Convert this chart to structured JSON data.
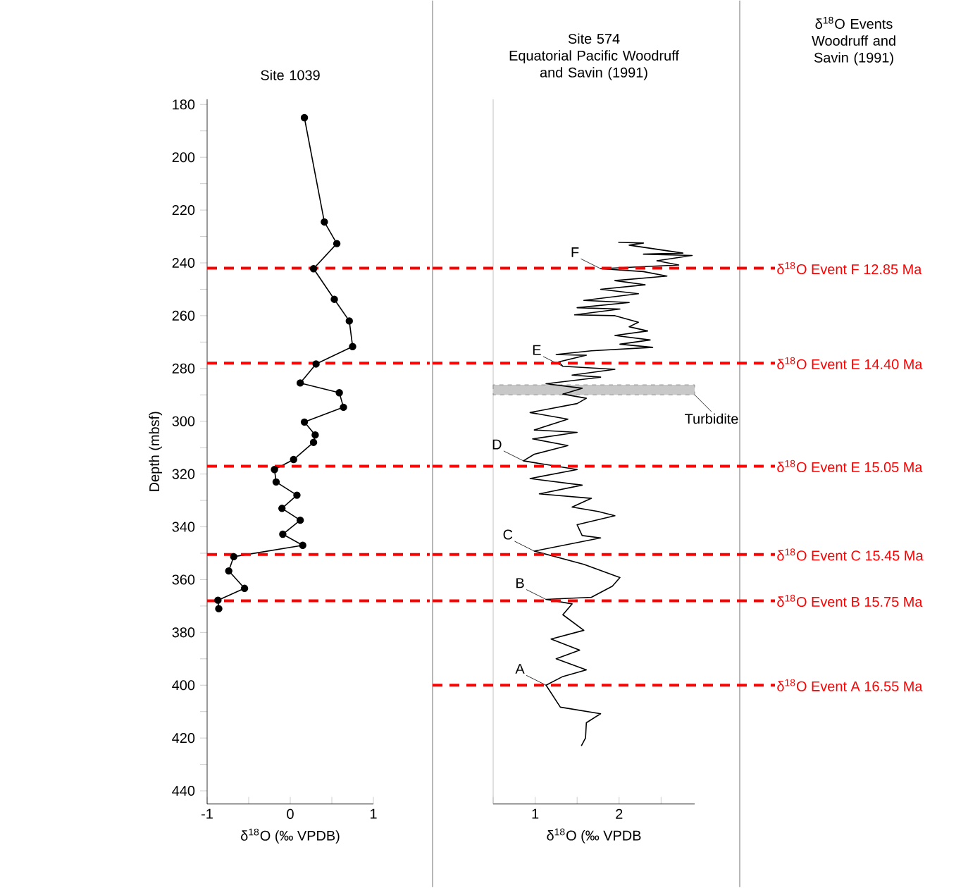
{
  "chart_data": [
    {
      "type": "line",
      "title": "Site 1039",
      "xlabel": "δ$^{18}$O (‰ VPDB)",
      "ylabel": "Depth (mbsf)",
      "marker": "circle",
      "line_style": "solid",
      "xlim": [
        -1,
        1
      ],
      "xticks": [
        -1,
        {
          "value": -0.5,
          "label": null
        },
        0,
        {
          "value": 0.5,
          "label": null
        },
        1
      ],
      "ylim": [
        445,
        178
      ],
      "yticks": [
        180,
        {
          "value": 190,
          "label": null
        },
        200,
        {
          "value": 210,
          "label": null
        },
        220,
        {
          "value": 230,
          "label": null
        },
        240,
        {
          "value": 250,
          "label": null
        },
        260,
        {
          "value": 270,
          "label": null
        },
        280,
        {
          "value": 290,
          "label": null
        },
        300,
        {
          "value": 310,
          "label": null
        },
        320,
        {
          "value": 330,
          "label": null
        },
        340,
        {
          "value": 350,
          "label": null
        },
        360,
        {
          "value": 370,
          "label": null
        },
        380,
        {
          "value": 390,
          "label": null
        },
        400,
        {
          "value": 410,
          "label": null
        },
        420,
        {
          "value": 430,
          "label": null
        },
        440
      ],
      "series": [
        {
          "color": "#000000",
          "x": [
            0.17,
            0.41,
            0.56,
            0.28,
            0.53,
            0.71,
            0.75,
            0.31,
            0.12,
            0.59,
            0.64,
            0.17,
            0.3,
            0.28,
            0.04,
            -0.19,
            -0.17,
            0.08,
            -0.1,
            0.12,
            -0.09,
            0.15,
            -0.68,
            -0.74,
            -0.55,
            -0.87,
            -0.86
          ],
          "values": [
            185,
            224.5,
            232.7,
            242.2,
            253.8,
            262,
            271.7,
            278.3,
            285.5,
            289.2,
            294.7,
            300.3,
            305.2,
            308,
            314.5,
            318.3,
            323,
            328,
            333,
            337.5,
            342.8,
            347,
            351.3,
            356.7,
            363.3,
            367.8,
            371
          ]
        }
      ],
      "ref_lines": [
        {
          "axis": "y",
          "value": 242,
          "color": "#ff0000",
          "line_style": "dashed"
        },
        {
          "axis": "y",
          "value": 278,
          "color": "#ff0000",
          "line_style": "dashed"
        },
        {
          "axis": "y",
          "value": 317,
          "color": "#ff0000",
          "line_style": "dashed"
        },
        {
          "axis": "y",
          "value": 350.5,
          "color": "#ff0000",
          "line_style": "dashed"
        },
        {
          "axis": "y",
          "value": 368,
          "color": "#ff0000",
          "line_style": "dashed"
        }
      ]
    },
    {
      "type": "line",
      "title": "Site 574",
      "subtitle": "Equatorial Pacific Woodruff and Savin (1991)",
      "xlabel": "δ$^{18}$O (‰ VPDB",
      "marker": "none",
      "line_style": "solid",
      "tick_labels": "x",
      "xlim": [
        0.5,
        2.9
      ],
      "xticks": [
        {
          "value": 0.5,
          "label": null
        },
        1,
        {
          "value": 1.5,
          "label": null
        },
        2,
        {
          "value": 2.5,
          "label": null
        }
      ],
      "ylim": [
        445,
        178
      ],
      "series": [
        {
          "color": "#000000",
          "x": [
            1.99,
            2.29,
            2.12,
            2.76,
            2.29,
            2.87,
            2.45,
            2.71,
            1.78,
            2.29,
            2.57,
            1.95,
            2.31,
            1.78,
            2.23,
            1.58,
            2.12,
            1.5,
            2.01,
            1.47,
            1.95,
            2.23,
            2.12,
            2.34,
            1.95,
            2.37,
            2.01,
            2.4,
            1.67,
            1.25,
            1.61,
            1.28,
            1.33,
            1.95,
            1.44,
            1.78,
            1.13,
            1.56,
            1.33,
            1.61,
            1.5,
            0.94,
            1.39,
            0.99,
            1.5,
            0.97,
            1.39,
            0.99,
            0.86,
            1.5,
            0.94,
            1.56,
            1.05,
            1.67,
            1.44,
            1.75,
            1.95,
            1.5,
            1.56,
            1.78,
            0.99,
            1.58,
            2.01,
            1.92,
            1.67,
            1.13,
            1.44,
            1.33,
            1.58,
            1.19,
            1.53,
            1.25,
            1.61,
            1.33,
            1.13,
            1.3,
            1.78,
            1.61,
            1.6,
            1.55
          ],
          "values": [
            232.2,
            232.5,
            233.3,
            236.3,
            236.7,
            237.2,
            239.2,
            240.8,
            242.2,
            243.3,
            245,
            246.7,
            248.3,
            250,
            251.7,
            254.2,
            255,
            257,
            257.5,
            259.7,
            260,
            262.5,
            264.2,
            265.8,
            267.5,
            269.2,
            270.8,
            272,
            273.3,
            274.7,
            275,
            277.5,
            279.2,
            280.3,
            282.5,
            283.3,
            285.8,
            287.5,
            289.7,
            291.3,
            293.3,
            296.7,
            299.2,
            303.3,
            304.2,
            306.7,
            309.2,
            312.5,
            315,
            318.3,
            321.7,
            324.2,
            327.5,
            329.2,
            332.5,
            334.2,
            335.8,
            339.2,
            343.3,
            344.2,
            349.2,
            354.2,
            359.2,
            362.5,
            366.7,
            367.5,
            369.2,
            373.3,
            379.2,
            382.5,
            386.7,
            390,
            394.2,
            396.7,
            400,
            408.3,
            410.8,
            414.2,
            420,
            423
          ]
        }
      ],
      "bands": [
        {
          "axis": "y",
          "from": 286.2,
          "to": 290,
          "label": "Turbidite",
          "color": "#c8c8c8"
        }
      ],
      "annotations": [
        {
          "text": "F",
          "x": 1.78,
          "y": 242.2
        },
        {
          "text": "E",
          "x": 1.33,
          "y": 279.2
        },
        {
          "text": "D",
          "x": 0.86,
          "y": 315
        },
        {
          "text": "C",
          "x": 0.99,
          "y": 349.2
        },
        {
          "text": "B",
          "x": 1.13,
          "y": 367.5
        },
        {
          "text": "A",
          "x": 1.13,
          "y": 400
        }
      ],
      "ref_lines": [
        {
          "axis": "y",
          "value": 242,
          "label": "δ$^{18}$O Event F 12.85 Ma",
          "color": "#ff0000",
          "line_style": "dashed"
        },
        {
          "axis": "y",
          "value": 278,
          "label": "δ$^{18}$O Event E 14.40 Ma",
          "color": "#ff0000",
          "line_style": "dashed"
        },
        {
          "axis": "y",
          "value": 317,
          "label": "δ$^{18}$O Event E 15.05 Ma",
          "color": "#ff0000",
          "line_style": "dashed"
        },
        {
          "axis": "y",
          "value": 350.5,
          "label": "δ$^{18}$O Event C 15.45 Ma",
          "color": "#ff0000",
          "line_style": "dashed"
        },
        {
          "axis": "y",
          "value": 368,
          "label": "δ$^{18}$O Event B 15.75 Ma",
          "color": "#ff0000",
          "line_style": "dashed"
        },
        {
          "axis": "y",
          "value": 400,
          "label": "δ$^{18}$O Event A 16.55 Ma",
          "color": "#ff0000",
          "line_style": "dashed"
        }
      ]
    },
    {
      "type": "other",
      "title": "δ$^{18}$O Events Woodruff and Savin (1991)"
    }
  ]
}
